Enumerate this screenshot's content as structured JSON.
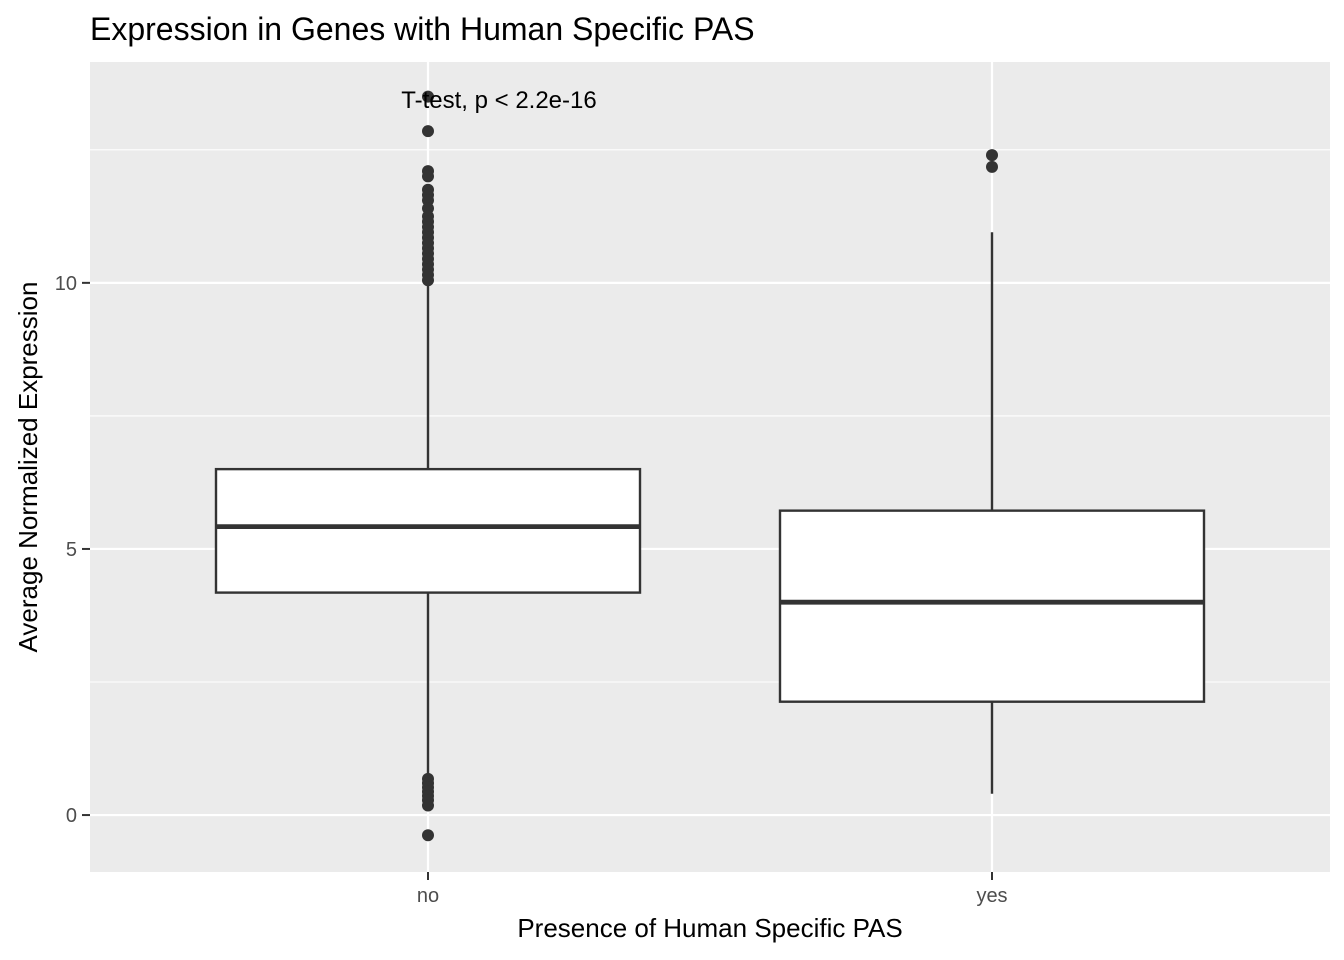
{
  "chart_data": {
    "type": "box",
    "title": "Expression in Genes with Human Specific PAS",
    "xlabel": "Presence of Human Specific PAS",
    "ylabel": "Average Normalized Expression",
    "categories": [
      "no",
      "yes"
    ],
    "y_ticks": [
      0,
      5,
      10
    ],
    "y_tick_labels": [
      "0",
      "5",
      "10"
    ],
    "ylim": [
      -1.07,
      14.15
    ],
    "grid": true,
    "annotation": "T-test, p < 2.2e-16",
    "boxes": [
      {
        "category": "no",
        "q1": 4.18,
        "median": 5.42,
        "q3": 6.5,
        "whisker_low": 0.72,
        "whisker_high": 10.0,
        "outliers": [
          13.5,
          12.85,
          12.1,
          12.0,
          11.75,
          11.65,
          11.55,
          11.4,
          11.25,
          11.15,
          11.05,
          10.95,
          10.85,
          10.75,
          10.65,
          10.55,
          10.45,
          10.35,
          10.25,
          10.15,
          10.05,
          0.68,
          0.6,
          0.52,
          0.44,
          0.36,
          0.28,
          0.18,
          -0.38
        ]
      },
      {
        "category": "yes",
        "q1": 2.13,
        "median": 4.0,
        "q3": 5.72,
        "whisker_low": 0.4,
        "whisker_high": 10.95,
        "outliers": [
          12.4,
          12.18
        ]
      }
    ],
    "colors": {
      "panel_background": "#ebebeb",
      "gridline": "#ffffff",
      "box_fill": "#ffffff",
      "box_stroke": "#333333",
      "point": "#333333",
      "tick": "#333333",
      "tick_label": "#4d4d4d"
    }
  }
}
